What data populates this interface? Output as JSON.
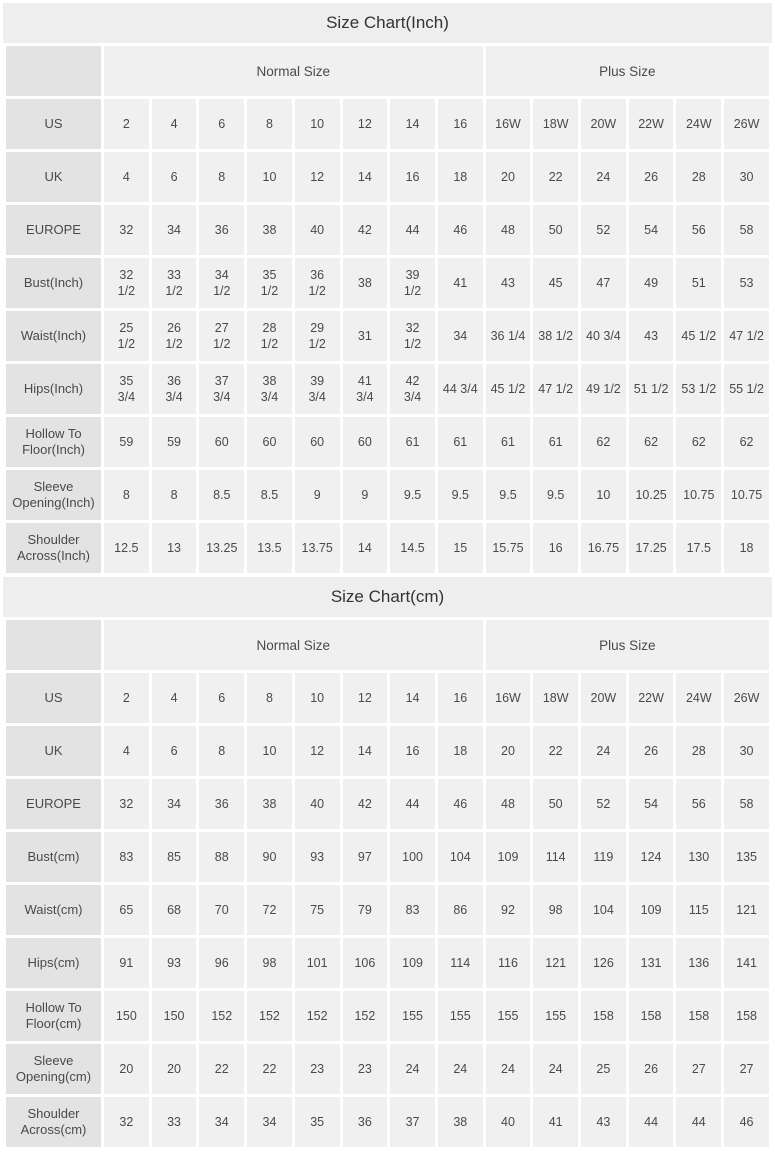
{
  "colors": {
    "title_bar_bg": "#eeeeee",
    "header_cell_bg": "#e3e3e3",
    "data_cell_bg": "#f0f0f0",
    "gap": "#ffffff",
    "title_text": "#333333",
    "cell_text": "#4a4a4a"
  },
  "chart_data": [
    {
      "type": "table",
      "title": "Size Chart(Inch)",
      "group_headers": [
        {
          "label": "Normal Size",
          "span": 8
        },
        {
          "label": "Plus Size",
          "span": 6
        }
      ],
      "rows": [
        {
          "label": "US",
          "values": [
            "2",
            "4",
            "6",
            "8",
            "10",
            "12",
            "14",
            "16",
            "16W",
            "18W",
            "20W",
            "22W",
            "24W",
            "26W"
          ]
        },
        {
          "label": "UK",
          "values": [
            "4",
            "6",
            "8",
            "10",
            "12",
            "14",
            "16",
            "18",
            "20",
            "22",
            "24",
            "26",
            "28",
            "30"
          ]
        },
        {
          "label": "EUROPE",
          "values": [
            "32",
            "34",
            "36",
            "38",
            "40",
            "42",
            "44",
            "46",
            "48",
            "50",
            "52",
            "54",
            "56",
            "58"
          ]
        },
        {
          "label": "Bust(Inch)",
          "values": [
            "32\n1/2",
            "33\n1/2",
            "34\n1/2",
            "35\n1/2",
            "36\n1/2",
            "38",
            "39\n1/2",
            "41",
            "43",
            "45",
            "47",
            "49",
            "51",
            "53"
          ]
        },
        {
          "label": "Waist(Inch)",
          "values": [
            "25\n1/2",
            "26\n1/2",
            "27\n1/2",
            "28\n1/2",
            "29\n1/2",
            "31",
            "32\n1/2",
            "34",
            "36 1/4",
            "38 1/2",
            "40 3/4",
            "43",
            "45 1/2",
            "47 1/2"
          ]
        },
        {
          "label": "Hips(Inch)",
          "values": [
            "35\n3/4",
            "36\n3/4",
            "37\n3/4",
            "38\n3/4",
            "39\n3/4",
            "41\n3/4",
            "42\n3/4",
            "44 3/4",
            "45 1/2",
            "47 1/2",
            "49 1/2",
            "51 1/2",
            "53 1/2",
            "55 1/2"
          ]
        },
        {
          "label": "Hollow To Floor(Inch)",
          "values": [
            "59",
            "59",
            "60",
            "60",
            "60",
            "60",
            "61",
            "61",
            "61",
            "61",
            "62",
            "62",
            "62",
            "62"
          ]
        },
        {
          "label": "Sleeve Opening(Inch)",
          "values": [
            "8",
            "8",
            "8.5",
            "8.5",
            "9",
            "9",
            "9.5",
            "9.5",
            "9.5",
            "9.5",
            "10",
            "10.25",
            "10.75",
            "10.75"
          ]
        },
        {
          "label": "Shoulder Across(Inch)",
          "values": [
            "12.5",
            "13",
            "13.25",
            "13.5",
            "13.75",
            "14",
            "14.5",
            "15",
            "15.75",
            "16",
            "16.75",
            "17.25",
            "17.5",
            "18"
          ]
        }
      ]
    },
    {
      "type": "table",
      "title": "Size Chart(cm)",
      "group_headers": [
        {
          "label": "Normal Size",
          "span": 8
        },
        {
          "label": "Plus Size",
          "span": 6
        }
      ],
      "rows": [
        {
          "label": "US",
          "values": [
            "2",
            "4",
            "6",
            "8",
            "10",
            "12",
            "14",
            "16",
            "16W",
            "18W",
            "20W",
            "22W",
            "24W",
            "26W"
          ]
        },
        {
          "label": "UK",
          "values": [
            "4",
            "6",
            "8",
            "10",
            "12",
            "14",
            "16",
            "18",
            "20",
            "22",
            "24",
            "26",
            "28",
            "30"
          ]
        },
        {
          "label": "EUROPE",
          "values": [
            "32",
            "34",
            "36",
            "38",
            "40",
            "42",
            "44",
            "46",
            "48",
            "50",
            "52",
            "54",
            "56",
            "58"
          ]
        },
        {
          "label": "Bust(cm)",
          "values": [
            "83",
            "85",
            "88",
            "90",
            "93",
            "97",
            "100",
            "104",
            "109",
            "114",
            "119",
            "124",
            "130",
            "135"
          ]
        },
        {
          "label": "Waist(cm)",
          "values": [
            "65",
            "68",
            "70",
            "72",
            "75",
            "79",
            "83",
            "86",
            "92",
            "98",
            "104",
            "109",
            "115",
            "121"
          ]
        },
        {
          "label": "Hips(cm)",
          "values": [
            "91",
            "93",
            "96",
            "98",
            "101",
            "106",
            "109",
            "114",
            "116",
            "121",
            "126",
            "131",
            "136",
            "141"
          ]
        },
        {
          "label": "Hollow To Floor(cm)",
          "values": [
            "150",
            "150",
            "152",
            "152",
            "152",
            "152",
            "155",
            "155",
            "155",
            "155",
            "158",
            "158",
            "158",
            "158"
          ]
        },
        {
          "label": "Sleeve Opening(cm)",
          "values": [
            "20",
            "20",
            "22",
            "22",
            "23",
            "23",
            "24",
            "24",
            "24",
            "24",
            "25",
            "26",
            "27",
            "27"
          ]
        },
        {
          "label": "Shoulder Across(cm)",
          "values": [
            "32",
            "33",
            "34",
            "34",
            "35",
            "36",
            "37",
            "38",
            "40",
            "41",
            "43",
            "44",
            "44",
            "46"
          ]
        }
      ]
    }
  ]
}
